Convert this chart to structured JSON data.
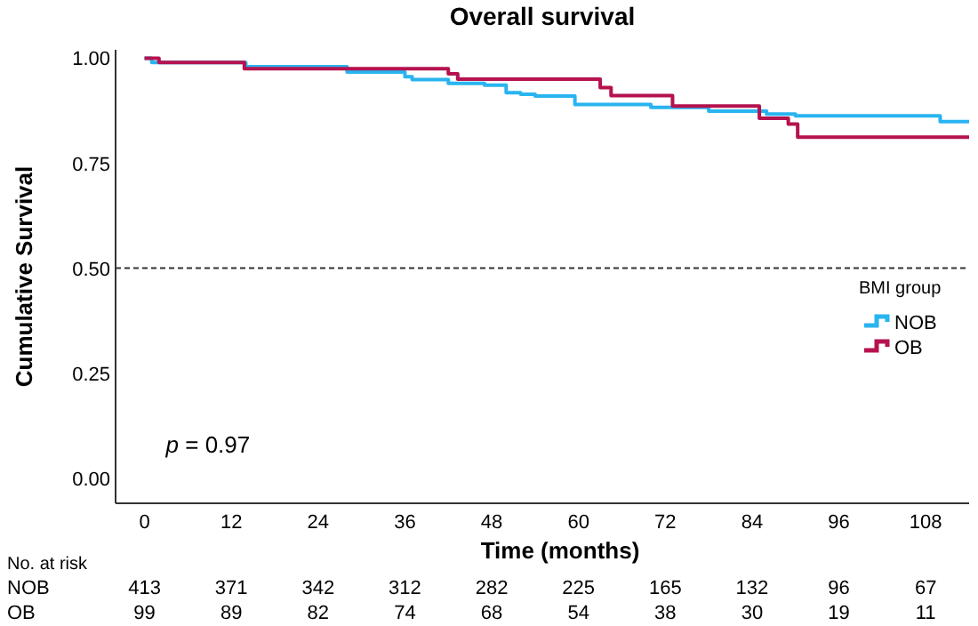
{
  "chart_data": {
    "type": "step",
    "title": "Overall survival",
    "xlabel": "Time (months)",
    "ylabel": "Cumulative Survival",
    "legend_title": "BMI group",
    "legend": "right",
    "grid": false,
    "line_style": "solid",
    "xlim": [
      -4,
      114
    ],
    "xticks": [
      0,
      12,
      24,
      36,
      48,
      60,
      72,
      84,
      96,
      108
    ],
    "ylim": [
      -0.06,
      1.02
    ],
    "yticks": [
      {
        "value": 0,
        "label": "0.00"
      },
      {
        "value": 0.25,
        "label": "0.25"
      },
      {
        "value": 0.5,
        "label": "0.50"
      },
      {
        "value": 0.75,
        "label": "0.75"
      },
      {
        "value": 1,
        "label": "1.00"
      }
    ],
    "series": [
      {
        "name": "NOB",
        "color": "#29b4f0",
        "x": [
          0,
          1,
          14,
          28,
          36,
          37,
          42,
          47,
          50,
          52,
          54,
          56,
          59.5,
          70,
          78,
          86,
          90,
          110,
          114
        ],
        "values": [
          1,
          0.99,
          0.98,
          0.967,
          0.956,
          0.949,
          0.94,
          0.936,
          0.918,
          0.914,
          0.91,
          0.91,
          0.89,
          0.883,
          0.874,
          0.867,
          0.863,
          0.849,
          0.849
        ]
      },
      {
        "name": "OB",
        "color": "#b5124f",
        "x": [
          0,
          2,
          13.8,
          42,
          43.3,
          63,
          64.5,
          73,
          85,
          89,
          90.3,
          114
        ],
        "values": [
          1,
          0.99,
          0.975,
          0.963,
          0.95,
          0.93,
          0.911,
          0.886,
          0.857,
          0.843,
          0.812,
          0.812
        ]
      }
    ],
    "ref_lines": [
      {
        "axis": "y",
        "value": 0.5,
        "line_style": "dashed",
        "color": "#333333"
      }
    ],
    "annotations": [
      "p = 0.97",
      "No. at risk",
      "413 371 342 312 282 225 165 132 96 67",
      "99 89 82 74 68 54 38 30 19 11"
    ]
  }
}
